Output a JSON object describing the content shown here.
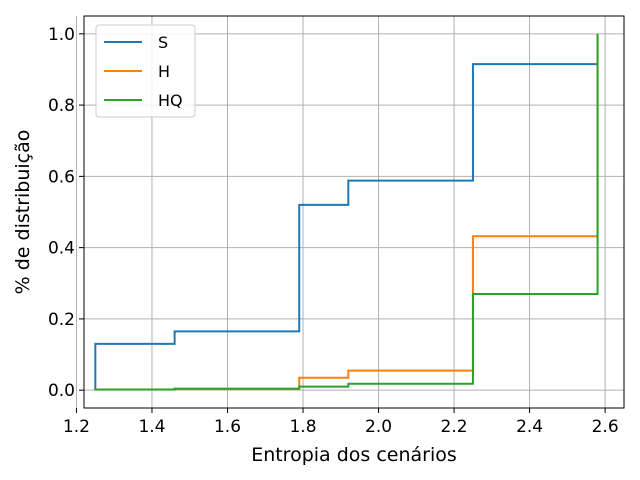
{
  "chart_data": {
    "type": "line",
    "step": "post",
    "xlabel": "Entropia dos cenários",
    "ylabel": "% de distribuição",
    "xlim": [
      1.22,
      2.65
    ],
    "ylim": [
      -0.05,
      1.05
    ],
    "xticks": [
      1.2,
      1.4,
      1.6,
      1.8,
      2.0,
      2.2,
      2.4,
      2.6
    ],
    "xtick_labels": [
      "1.2",
      "1.4",
      "1.6",
      "1.8",
      "2.0",
      "2.2",
      "2.4",
      "2.6"
    ],
    "yticks": [
      0.0,
      0.2,
      0.4,
      0.6,
      0.8,
      1.0
    ],
    "ytick_labels": [
      "0.0",
      "0.2",
      "0.4",
      "0.6",
      "0.8",
      "1.0"
    ],
    "grid": true,
    "legend_position": "top-left",
    "series": [
      {
        "name": "S",
        "color": "#1f77b4",
        "x": [
          1.25,
          1.25,
          1.46,
          1.79,
          1.92,
          2.25,
          2.58
        ],
        "y": [
          0.0,
          0.13,
          0.165,
          0.52,
          0.588,
          0.915,
          0.915
        ]
      },
      {
        "name": "H",
        "color": "#ff7f0e",
        "x": [
          1.25,
          1.46,
          1.79,
          1.92,
          2.25,
          2.58,
          2.58
        ],
        "y": [
          0.002,
          0.004,
          0.035,
          0.055,
          0.432,
          0.432,
          1.0
        ]
      },
      {
        "name": "HQ",
        "color": "#2ca02c",
        "x": [
          1.25,
          1.46,
          1.79,
          1.92,
          2.25,
          2.58,
          2.58
        ],
        "y": [
          0.002,
          0.004,
          0.01,
          0.018,
          0.27,
          0.27,
          1.0
        ]
      }
    ]
  }
}
